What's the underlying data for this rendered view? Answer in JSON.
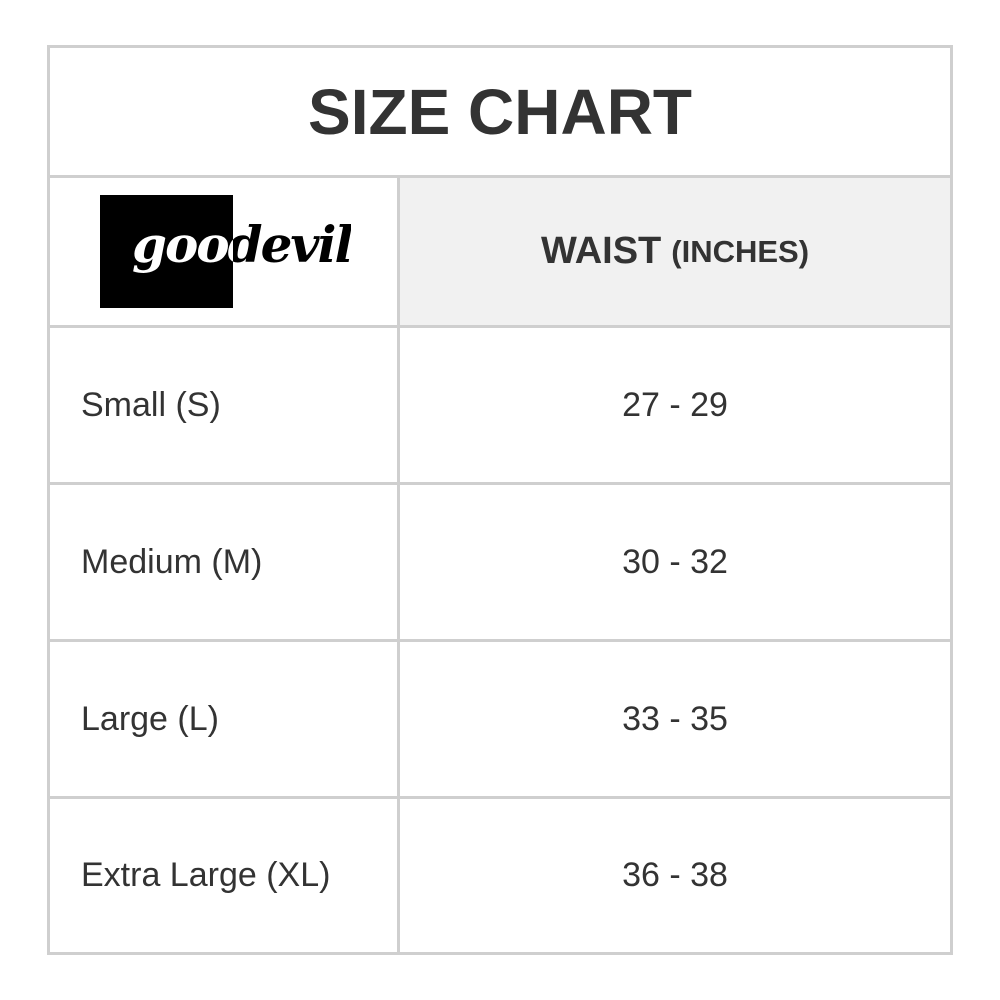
{
  "title": "SIZE CHART",
  "logo": {
    "text": "goodevil"
  },
  "header": {
    "column": "WAIST",
    "unit": "(INCHES)"
  },
  "rows": [
    {
      "size": "Small (S)",
      "waist": "27 - 29"
    },
    {
      "size": "Medium (M)",
      "waist": "30 - 32"
    },
    {
      "size": "Large (L)",
      "waist": "33 - 35"
    },
    {
      "size": "Extra Large (XL)",
      "waist": "36 - 38"
    }
  ]
}
